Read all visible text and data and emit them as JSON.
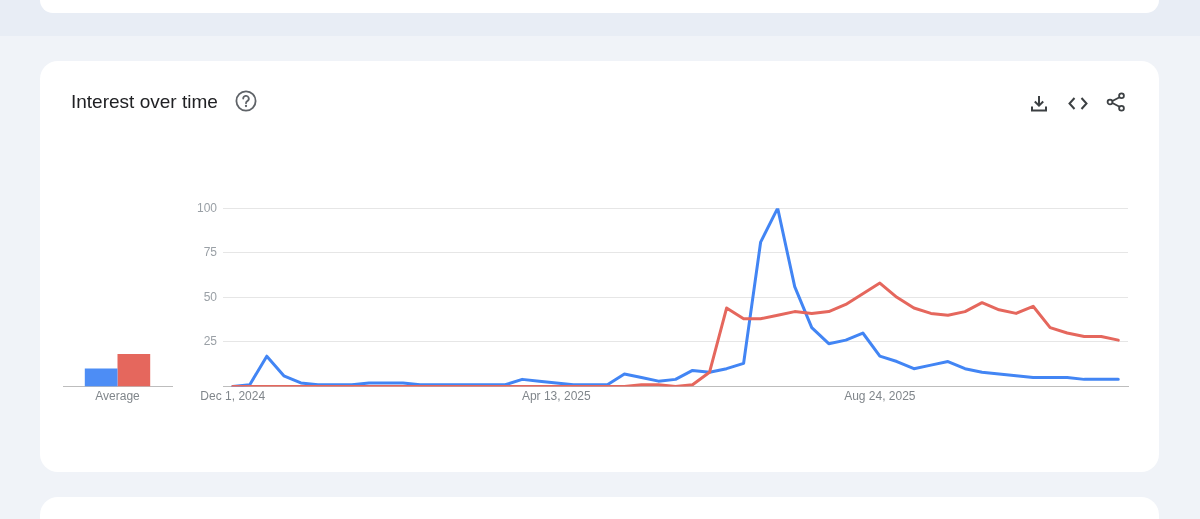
{
  "chart_data": [
    {
      "type": "bar",
      "title": "Interest over time",
      "categories": [
        "Average"
      ],
      "series": [
        {
          "color": "#4d8df5",
          "values": [
            10
          ]
        },
        {
          "color": "#e5675d",
          "values": [
            18
          ]
        }
      ],
      "ylim": [
        0,
        100
      ],
      "tick_labels": "x"
    },
    {
      "type": "line",
      "x": [
        "2024-12-01",
        "2024-12-08",
        "2024-12-15",
        "2024-12-22",
        "2024-12-29",
        "2025-01-05",
        "2025-01-12",
        "2025-01-19",
        "2025-01-26",
        "2025-02-02",
        "2025-02-09",
        "2025-02-16",
        "2025-02-23",
        "2025-03-02",
        "2025-03-09",
        "2025-03-16",
        "2025-03-23",
        "2025-03-30",
        "2025-04-06",
        "2025-04-13",
        "2025-04-20",
        "2025-04-27",
        "2025-05-04",
        "2025-05-11",
        "2025-05-18",
        "2025-05-25",
        "2025-06-01",
        "2025-06-08",
        "2025-06-15",
        "2025-06-22",
        "2025-06-29",
        "2025-07-06",
        "2025-07-13",
        "2025-07-20",
        "2025-07-27",
        "2025-08-03",
        "2025-08-10",
        "2025-08-17",
        "2025-08-24",
        "2025-08-31",
        "2025-09-07",
        "2025-09-14",
        "2025-09-21",
        "2025-09-28",
        "2025-10-05",
        "2025-10-12",
        "2025-10-19",
        "2025-10-26",
        "2025-11-02",
        "2025-11-09",
        "2025-11-16",
        "2025-11-23",
        "2025-11-30"
      ],
      "series": [
        {
          "color": "#4285f4",
          "values": [
            0,
            1,
            17,
            6,
            2,
            1,
            1,
            1,
            2,
            2,
            2,
            1,
            1,
            1,
            1,
            1,
            1,
            4,
            3,
            2,
            1,
            1,
            1,
            7,
            5,
            3,
            4,
            9,
            8,
            10,
            13,
            81,
            100,
            56,
            33,
            24,
            26,
            30,
            17,
            14,
            10,
            12,
            14,
            10,
            8,
            7,
            6,
            5,
            5,
            5,
            4,
            4,
            4
          ]
        },
        {
          "color": "#e5675d",
          "values": [
            0,
            0,
            0,
            0,
            0,
            0,
            0,
            0,
            0,
            0,
            0,
            0,
            0,
            0,
            0,
            0,
            0,
            0,
            0,
            0,
            0,
            0,
            0,
            0,
            1,
            1,
            0,
            1,
            8,
            44,
            38,
            38,
            40,
            42,
            41,
            42,
            46,
            52,
            58,
            50,
            44,
            41,
            40,
            42,
            47,
            43,
            41,
            45,
            33,
            30,
            28,
            28,
            26
          ]
        }
      ],
      "xlim": [
        "2024-11-27",
        "2025-12-04"
      ],
      "xticks": [
        {
          "value": "2024-12-01",
          "label": "Dec 1, 2024"
        },
        {
          "value": "2025-04-13",
          "label": "Apr 13, 2025"
        },
        {
          "value": "2025-08-24",
          "label": "Aug 24, 2025"
        }
      ],
      "ylim": [
        0,
        100
      ],
      "yticks": [
        25,
        50,
        75,
        100
      ],
      "grid": "y",
      "marker": "none"
    }
  ]
}
